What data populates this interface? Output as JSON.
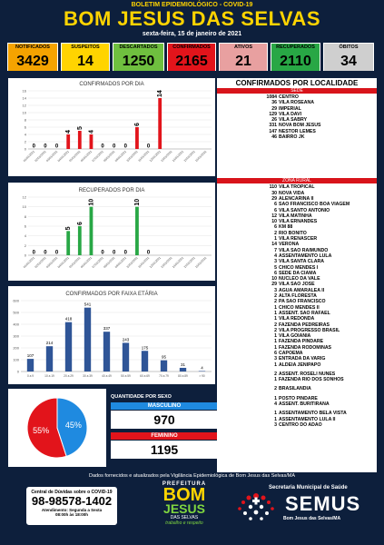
{
  "header": {
    "kicker": "BOLETIM EPIDEMIOLÓGICO - COVID-19",
    "title": "Bom Jesus das Selvas",
    "date": "sexta-feira, 15 de janeiro de 2021"
  },
  "stats": [
    {
      "label": "NOTIFICADOS",
      "value": "3429",
      "color": "#f5a300"
    },
    {
      "label": "SUSPEITOS",
      "value": "14",
      "color": "#ffd400"
    },
    {
      "label": "DESCARTADOS",
      "value": "1250",
      "color": "#6fbf3f"
    },
    {
      "label": "CONFIRMADOS",
      "value": "2165",
      "color": "#e2141b"
    },
    {
      "label": "ATIVOS",
      "value": "21",
      "color": "#e8a0a0"
    },
    {
      "label": "RECUPERADOS",
      "value": "2110",
      "color": "#28a745"
    },
    {
      "label": "ÓBITOS",
      "value": "34",
      "color": "#cfcfcf"
    }
  ],
  "charts": {
    "confirmed": {
      "title": "CONFIRMADOS POR DIA",
      "color": "#e2141b",
      "chart_data": {
        "type": "bar",
        "categories": [
          "01/01/2021",
          "02/01/2021",
          "03/01/2021",
          "04/01/2021",
          "05/01/2021",
          "06/01/2021",
          "07/01/2021",
          "08/01/2021",
          "09/01/2021",
          "10/01/2021",
          "11/01/2021",
          "12/01/2021",
          "13/01/2021",
          "14/01/2021",
          "15/01/2021",
          "16/01/2021"
        ],
        "values": [
          0,
          0,
          0,
          4,
          5,
          4,
          0,
          0,
          0,
          6,
          0,
          14,
          null,
          null,
          null,
          null
        ],
        "ylim": [
          0,
          16
        ],
        "yticks": [
          0,
          2,
          4,
          6,
          8,
          10,
          12,
          14,
          16
        ]
      }
    },
    "recovered": {
      "title": "RECUPERADOS POR DIA",
      "color": "#28a745",
      "chart_data": {
        "type": "bar",
        "categories": [
          "01/01/2021",
          "02/01/2021",
          "03/01/2021",
          "04/01/2021",
          "05/01/2021",
          "06/01/2021",
          "07/01/2021",
          "08/01/2021",
          "09/01/2021",
          "10/01/2021",
          "11/01/2021",
          "12/01/2021",
          "13/01/2021",
          "14/01/2021",
          "15/01/2021",
          "16/01/2021"
        ],
        "values": [
          0,
          0,
          0,
          5,
          6,
          10,
          0,
          0,
          0,
          10,
          0,
          null,
          null,
          null,
          null,
          null
        ],
        "ylim": [
          0,
          12
        ],
        "yticks": [
          0,
          2,
          4,
          6,
          8,
          10,
          12
        ]
      }
    },
    "age": {
      "title": "CONFIRMADOS POR FAIXA ETÁRIA",
      "color": "#2f5597",
      "chart_data": {
        "type": "bar",
        "categories": [
          "0 a 9",
          "10 a 19",
          "20 a 29",
          "30 a 39",
          "40 a 49",
          "50 a 59",
          "60 a 69",
          "70 a 79",
          "80 a 89",
          "> 90"
        ],
        "values": [
          107,
          214,
          418,
          541,
          337,
          243,
          175,
          95,
          31,
          4
        ],
        "ylim": [
          0,
          600
        ],
        "yticks": [
          0,
          100,
          200,
          300,
          400,
          500,
          600
        ]
      }
    },
    "sex_pie": {
      "chart_data": {
        "type": "pie",
        "categories": [
          "FEMININO",
          "MASCULINO"
        ],
        "values": [
          55,
          45
        ],
        "labels": [
          "55%",
          "45%"
        ],
        "colors": [
          "#e2141b",
          "#1f8ae0"
        ]
      }
    }
  },
  "sex": {
    "title": "QUANTIDADE POR SEXO",
    "male_label": "MASCULINO",
    "male_value": "970",
    "female_label": "FEMININO",
    "female_value": "1195",
    "male_color": "#1f8ae0",
    "female_color": "#e2141b"
  },
  "locations": {
    "title": "CONFIRMADOS POR LOCALIDADE",
    "sede_label": "SEDE",
    "sede": [
      {
        "n": "1084",
        "name": "CENTRO"
      },
      {
        "n": "36",
        "name": "VILA ROSEANA"
      },
      {
        "n": "29",
        "name": "IMPERIAL"
      },
      {
        "n": "129",
        "name": "VILA DAVI"
      },
      {
        "n": "26",
        "name": "VILA SABRY"
      },
      {
        "n": "331",
        "name": "NOVA BOM JESUS"
      },
      {
        "n": "147",
        "name": "NESTOR LEMES"
      },
      {
        "n": "46",
        "name": "BAIRRO JK"
      }
    ],
    "rural_label": "ZONA RURAL",
    "rural": [
      {
        "n": "110",
        "name": "VILA TROPICAL"
      },
      {
        "n": "30",
        "name": "NOVA VIDA"
      },
      {
        "n": "29",
        "name": "ALENCARINA II"
      },
      {
        "n": "6",
        "name": "SÃO FRANCISCO BOA VIAGEM"
      },
      {
        "n": "6",
        "name": "VILA SANTO ANTONIO"
      },
      {
        "n": "12",
        "name": "VILA MATINHA"
      },
      {
        "n": "10",
        "name": "VILA ERNANDES"
      },
      {
        "n": "6",
        "name": "KM 88"
      },
      {
        "n": "2",
        "name": "RIO BONITO"
      },
      {
        "n": "1",
        "name": "VILA RENASCER"
      },
      {
        "n": "14",
        "name": "VERONA"
      },
      {
        "n": "7",
        "name": "VILA SÃO RAIMUNDO"
      },
      {
        "n": "4",
        "name": "ASSENTAMENTO LULA"
      },
      {
        "n": "3",
        "name": "VILA SANTA CLARA"
      },
      {
        "n": "5",
        "name": "CHICO MENDES I"
      },
      {
        "n": "6",
        "name": "SEDE DA CIAMA"
      },
      {
        "n": "10",
        "name": "NUCLEO DA VALE"
      },
      {
        "n": "29",
        "name": "VILA SÃO JOSÉ"
      },
      {
        "n": "3",
        "name": "AGUA AMARALEA II"
      },
      {
        "n": "2",
        "name": "ALTA FLORESTA"
      },
      {
        "n": "2",
        "name": "PA SÃO FRANCISCO"
      },
      {
        "n": "1",
        "name": "CHICO MENDES II"
      },
      {
        "n": "1",
        "name": "ASSENT. SÃO RAFAEL"
      },
      {
        "n": "1",
        "name": "VILA REDONDA"
      },
      {
        "n": "2",
        "name": "FAZENDA PEDREIRAS"
      },
      {
        "n": "2",
        "name": "VILA PROGRESSO BRASIL"
      },
      {
        "n": "1",
        "name": "VILA GOIANIA"
      },
      {
        "n": "1",
        "name": "FAZENDA PINDARÉ"
      },
      {
        "n": "1",
        "name": "FAZENDA RODOMINAS"
      },
      {
        "n": "6",
        "name": "CAPOEMA"
      },
      {
        "n": "3",
        "name": "ENTRADA DA VARIG"
      },
      {
        "n": "1",
        "name": "ALDEIA JENIPAPO"
      },
      {
        "gap": true
      },
      {
        "n": "2",
        "name": "ASSENT. ROSELI NUNES"
      },
      {
        "n": "1",
        "name": "FAZENDA RIO DOS SONHOS"
      },
      {
        "gap": true
      },
      {
        "n": "2",
        "name": "BRASILANDIA"
      },
      {
        "gap": true
      },
      {
        "n": "1",
        "name": "POSTO PINDARÉ"
      },
      {
        "n": "4",
        "name": "ASSENT. BURITIRANA"
      },
      {
        "gap": true
      },
      {
        "n": "1",
        "name": "ASSENTAMENTO BELA VISTA"
      },
      {
        "n": "1",
        "name": "ASSENTAMENTO LULA II"
      },
      {
        "n": "3",
        "name": "CENTRO DO ADÃO"
      }
    ]
  },
  "footer": {
    "source": "Dados fornecidos e atualizados pela Vigilância Epidemiológica de Bom Jesus das Selvas/MA",
    "phone_label": "Central de Dúvidas sobre o COVID-19",
    "phone": "98-98578-1402",
    "hours_label": "Atendimento: Segunda a Sexta",
    "hours": "08:00h às 18:00h",
    "pref_top": "PREFEITURA",
    "pref_bom": "BOM",
    "pref_jesus": "JESUS",
    "pref_selvas": "DAS SELVAS",
    "pref_slogan": "trabalho e respeito",
    "semus_sec": "Secretaria Municipal de Saúde",
    "semus_name": "SEMUS",
    "semus_city": "Bom Jesus das Selvas/MA"
  }
}
